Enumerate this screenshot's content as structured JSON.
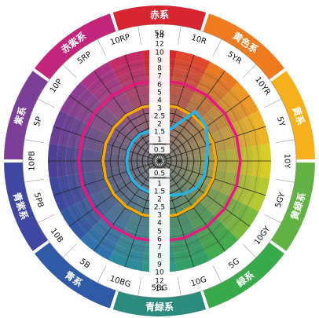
{
  "family_labels": [
    {
      "text": "赤系"
    },
    {
      "text": "黄色系"
    },
    {
      "text": "黄系"
    },
    {
      "text": "黄緑系"
    },
    {
      "text": "緑系"
    },
    {
      "text": "青緑系"
    },
    {
      "text": "青系"
    },
    {
      "text": "青紫系"
    },
    {
      "text": "紫系"
    },
    {
      "text": "赤紫系"
    }
  ],
  "hue_labels": [
    {
      "text": "5R"
    },
    {
      "text": "10R"
    },
    {
      "text": "5YR"
    },
    {
      "text": "10YR"
    },
    {
      "text": "5Y"
    },
    {
      "text": "10Y"
    },
    {
      "text": "5GY"
    },
    {
      "text": "10GY"
    },
    {
      "text": "5G"
    },
    {
      "text": "10G"
    },
    {
      "text": "5BG"
    },
    {
      "text": "10BG"
    },
    {
      "text": "5B"
    },
    {
      "text": "10B"
    },
    {
      "text": "5PB"
    },
    {
      "text": "10PB"
    },
    {
      "text": "5P"
    },
    {
      "text": "10P"
    },
    {
      "text": "5RP"
    },
    {
      "text": "10RP"
    }
  ],
  "chroma_scale_top": [
    "14",
    "12",
    "10",
    "9",
    "8",
    "7",
    "6",
    "5",
    "4",
    "3",
    "2.5",
    "2",
    "1.5",
    "1",
    "0.5"
  ],
  "chroma_scale_bottom": [
    "0.5",
    "1",
    "1.5",
    "2",
    "2.5",
    "3",
    "4",
    "5",
    "6",
    "7",
    "8",
    "9",
    "10",
    "12",
    "14"
  ],
  "colors": {
    "magenta_ring": "#e5197e",
    "orange_ring": "#f5a800",
    "cyan_ring": "#27b3e6",
    "web": "#222222",
    "gap": "#ffffff"
  },
  "family_colors": [
    "#d7262f",
    "#ee7b1f",
    "#f5b01c",
    "#62b343",
    "#3aa94b",
    "#2c8a7e",
    "#2e5aa6",
    "#3f47a0",
    "#7b3f98",
    "#c3257a"
  ]
}
